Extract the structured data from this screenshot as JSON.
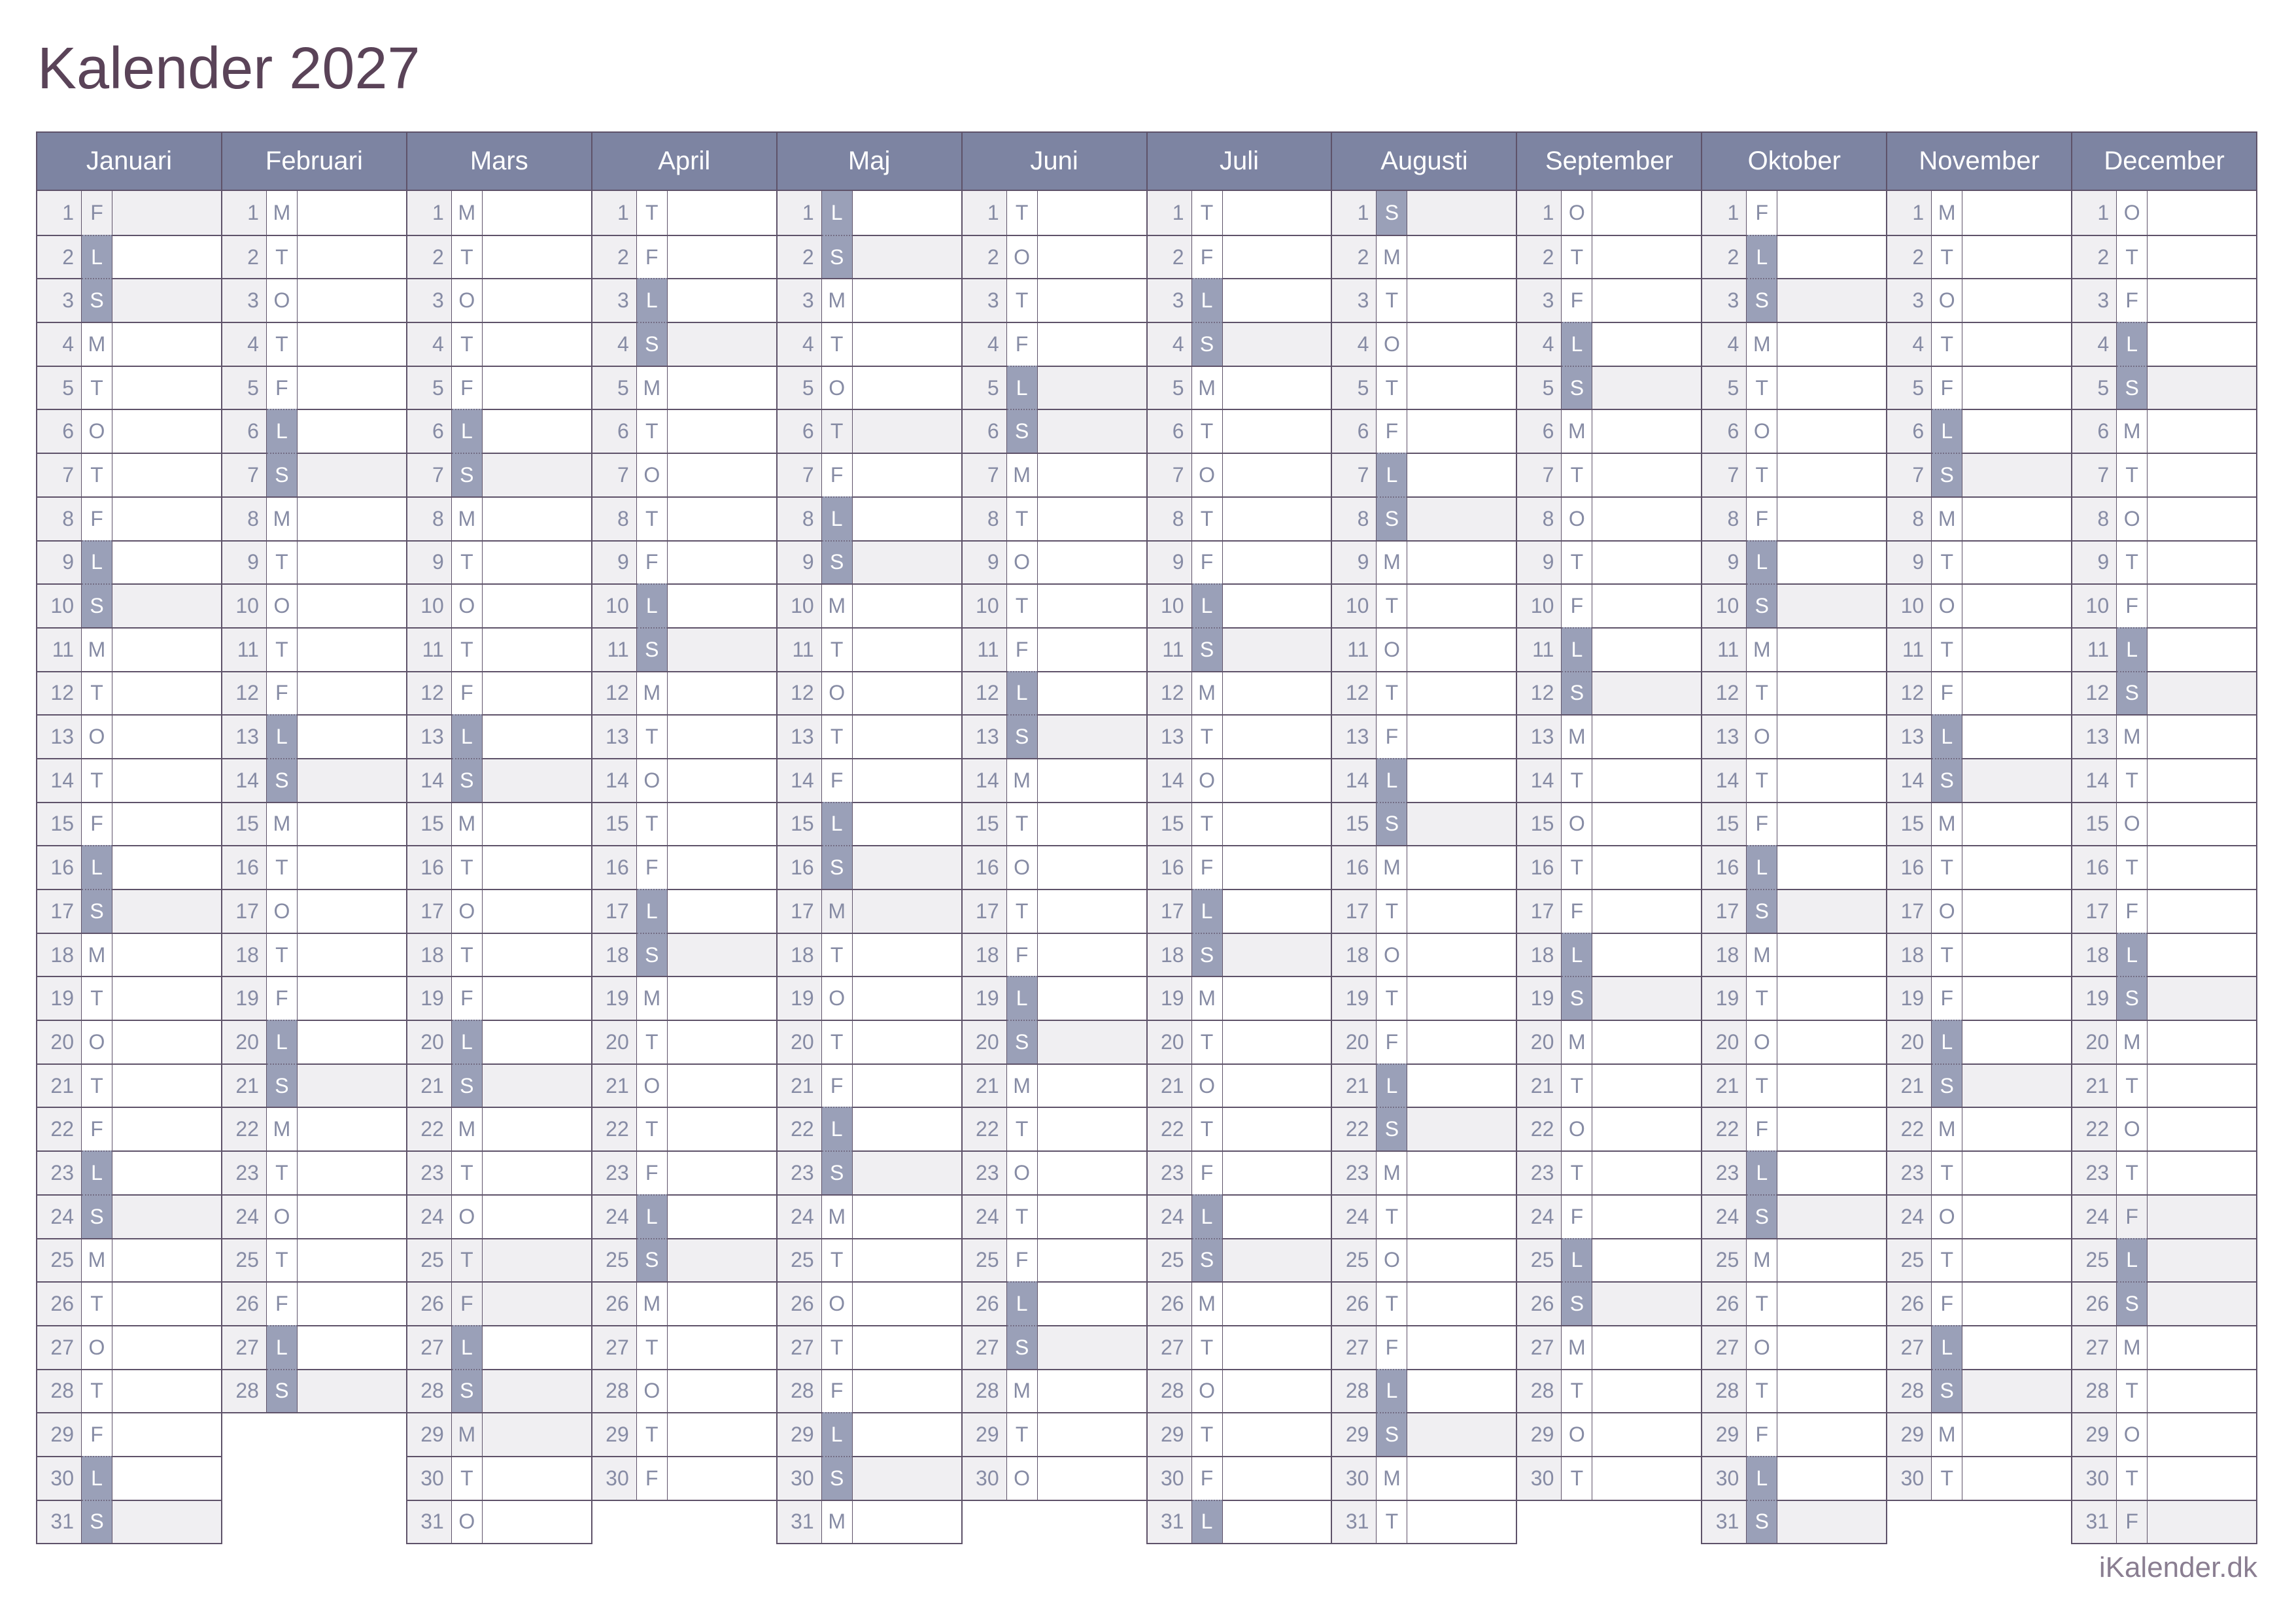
{
  "title": "Kalender 2027",
  "footer": "iKalender.dk",
  "day_letters": [
    "M",
    "T",
    "O",
    "T",
    "F",
    "L",
    "S"
  ],
  "colors": {
    "page_bg": "#ffffff",
    "title_color": "#5a4358",
    "header_bg": "#7d84a2",
    "weekend_bg": "#9aa0b8",
    "shade": "#f0eff2",
    "line": "#5e5269",
    "muted": "#868ba4",
    "footer_color": "#8a7e91"
  },
  "months": [
    {
      "name": "Januari",
      "days": 31,
      "first_dow": 4,
      "shaded_days": [
        1,
        3,
        10,
        17,
        24,
        31
      ]
    },
    {
      "name": "Februari",
      "days": 28,
      "first_dow": 0,
      "shaded_days": [
        7,
        14,
        21,
        28
      ]
    },
    {
      "name": "Mars",
      "days": 31,
      "first_dow": 0,
      "shaded_days": [
        7,
        14,
        21,
        25,
        26,
        28,
        29
      ]
    },
    {
      "name": "April",
      "days": 30,
      "first_dow": 3,
      "shaded_days": [
        4,
        11,
        18,
        25
      ]
    },
    {
      "name": "Maj",
      "days": 31,
      "first_dow": 5,
      "shaded_days": [
        2,
        6,
        9,
        16,
        17,
        23,
        30
      ]
    },
    {
      "name": "Juni",
      "days": 30,
      "first_dow": 1,
      "shaded_days": [
        5,
        6,
        13,
        20,
        27
      ]
    },
    {
      "name": "Juli",
      "days": 31,
      "first_dow": 3,
      "shaded_days": [
        4,
        11,
        18,
        25
      ]
    },
    {
      "name": "Augusti",
      "days": 31,
      "first_dow": 6,
      "shaded_days": [
        1,
        8,
        15,
        22,
        29
      ]
    },
    {
      "name": "September",
      "days": 30,
      "first_dow": 2,
      "shaded_days": [
        5,
        12,
        19,
        26
      ]
    },
    {
      "name": "Oktober",
      "days": 31,
      "first_dow": 4,
      "shaded_days": [
        3,
        10,
        17,
        24,
        31
      ]
    },
    {
      "name": "November",
      "days": 30,
      "first_dow": 0,
      "shaded_days": [
        7,
        14,
        21,
        28
      ]
    },
    {
      "name": "December",
      "days": 31,
      "first_dow": 2,
      "shaded_days": [
        5,
        12,
        19,
        24,
        25,
        26,
        31
      ]
    }
  ]
}
